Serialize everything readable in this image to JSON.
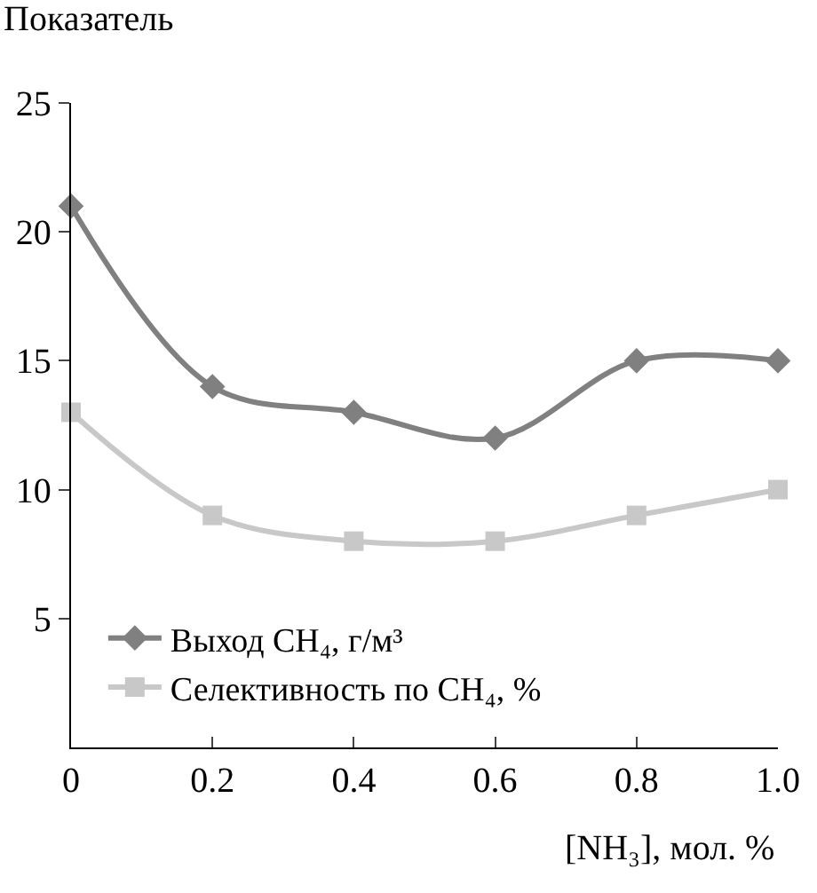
{
  "chart_data": {
    "type": "line",
    "ylabel": "Показатель",
    "xlabel": "[NH₃], мол. %",
    "x": [
      0,
      0.2,
      0.4,
      0.6,
      0.8,
      1.0
    ],
    "series": [
      {
        "name": "Выход CH₄, г/м³",
        "color": "#808080",
        "marker": "diamond",
        "values": [
          21,
          14,
          13,
          12,
          15,
          15
        ]
      },
      {
        "name": "Селективность по CH₄, %",
        "color": "#c8c8c8",
        "marker": "square",
        "values": [
          13,
          9,
          8,
          8,
          9,
          10
        ]
      }
    ],
    "xlim": [
      0,
      1
    ],
    "xticks": [
      0,
      0.2,
      0.4,
      0.6,
      0.8,
      {
        "value": 1,
        "label": "1.0"
      }
    ],
    "ylim": [
      0,
      25
    ],
    "yticks": [
      5,
      10,
      15,
      20,
      25
    ],
    "grid": false,
    "legend": "bottom left",
    "line_style": "solid"
  }
}
